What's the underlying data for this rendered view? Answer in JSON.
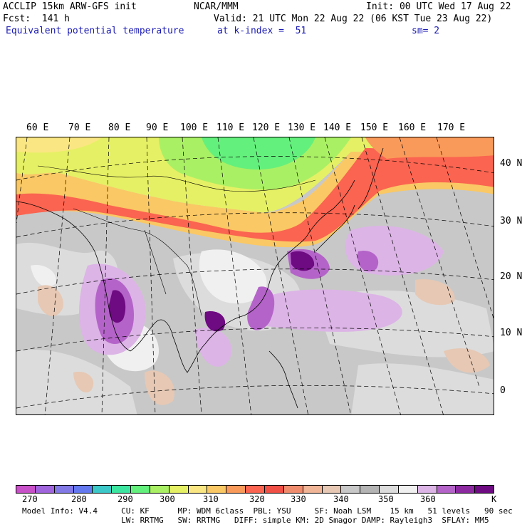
{
  "header": {
    "line1_left": "ACCLIP 15km ARW-GFS init",
    "line1_mid": "NCAR/MMM",
    "line1_right": "Init: 00 UTC Wed 17 Aug 22",
    "line2_left": "Fcst:  141 h",
    "line2_right": "Valid: 21 UTC Mon 22 Aug 22 (06 KST Tue 23 Aug 22)",
    "line3_left": "Equivalent potential temperature",
    "line3_mid": "at k-index =  51",
    "line3_right": "sm= 2"
  },
  "map": {
    "lon_labels": [
      "60 E",
      "70 E",
      "80 E",
      "90 E",
      "100 E",
      "110 E",
      "120 E",
      "130 E",
      "140 E",
      "150 E",
      "160 E",
      "170 E"
    ],
    "lat_labels": [
      "40 N",
      "30 N",
      "20 N",
      "10 N",
      "0"
    ]
  },
  "colorbar": {
    "colors": [
      "#c850c8",
      "#a064dc",
      "#8278e6",
      "#6478f0",
      "#3cc8c8",
      "#3ce6a0",
      "#64f07c",
      "#aaf064",
      "#e6f064",
      "#fae682",
      "#fac864",
      "#fa9a5a",
      "#fa6450",
      "#f05046",
      "#f08c6e",
      "#f0b496",
      "#e6c8b4",
      "#c8c8c8",
      "#b4b4b4",
      "#dcdcdc",
      "#f0f0f0",
      "#dcb4e6",
      "#b464c8",
      "#8c28a0",
      "#6e0a82"
    ],
    "tick_labels": [
      "270",
      "280",
      "290",
      "300",
      "310",
      "320",
      "330",
      "340",
      "350",
      "360"
    ],
    "units": "K"
  },
  "footer": {
    "line1": "Model Info: V4.4     CU: KF      MP: WDM 6class  PBL: YSU     SF: Noah LSM    15 km   51 levels   90 sec",
    "line2": "                     LW: RRTMG   SW: RRTMG   DIFF: simple KM: 2D Smagor DAMP: Rayleigh3  SFLAY: MM5"
  }
}
